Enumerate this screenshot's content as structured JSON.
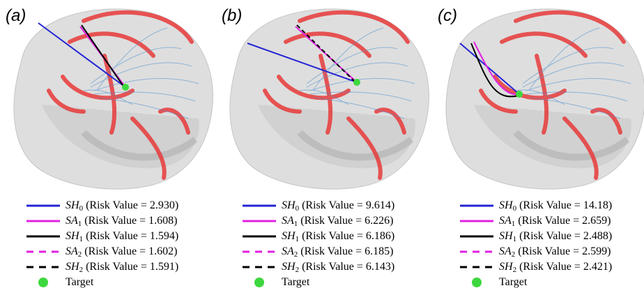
{
  "panels": [
    {
      "label": "(a)",
      "legend": [
        {
          "symbol": "SH",
          "sub": "0",
          "text": "(Risk Value = 2.930)"
        },
        {
          "symbol": "SA",
          "sub": "1",
          "text": "(Risk Value = 1.608)"
        },
        {
          "symbol": "SH",
          "sub": "1",
          "text": "(Risk Value = 1.594)"
        },
        {
          "symbol": "SA",
          "sub": "2",
          "text": "(Risk Value = 1.602)"
        },
        {
          "symbol": "SH",
          "sub": "2",
          "text": "(Risk Value = 1.591)"
        },
        {
          "text": "Target"
        }
      ]
    },
    {
      "label": "(b)",
      "legend": [
        {
          "symbol": "SH",
          "sub": "0",
          "text": "(Risk Value = 9.614)"
        },
        {
          "symbol": "SA",
          "sub": "1",
          "text": "(Risk Value = 6.226)"
        },
        {
          "symbol": "SH",
          "sub": "1",
          "text": "(Risk Value = 6.186)"
        },
        {
          "symbol": "SA",
          "sub": "2",
          "text": "(Risk Value = 6.185)"
        },
        {
          "symbol": "SH",
          "sub": "2",
          "text": "(Risk Value = 6.143)"
        },
        {
          "text": "Target"
        }
      ]
    },
    {
      "label": "(c)",
      "legend": [
        {
          "symbol": "SH",
          "sub": "0",
          "text": "(Risk Value = 14.18)"
        },
        {
          "symbol": "SA",
          "sub": "1",
          "text": "(Risk Value = 2.659)"
        },
        {
          "symbol": "SH",
          "sub": "1",
          "text": "(Risk Value = 2.488)"
        },
        {
          "symbol": "SA",
          "sub": "2",
          "text": "(Risk Value = 2.599)"
        },
        {
          "symbol": "SH",
          "sub": "2",
          "text": "(Risk Value = 2.421)"
        },
        {
          "text": "Target"
        }
      ]
    }
  ]
}
